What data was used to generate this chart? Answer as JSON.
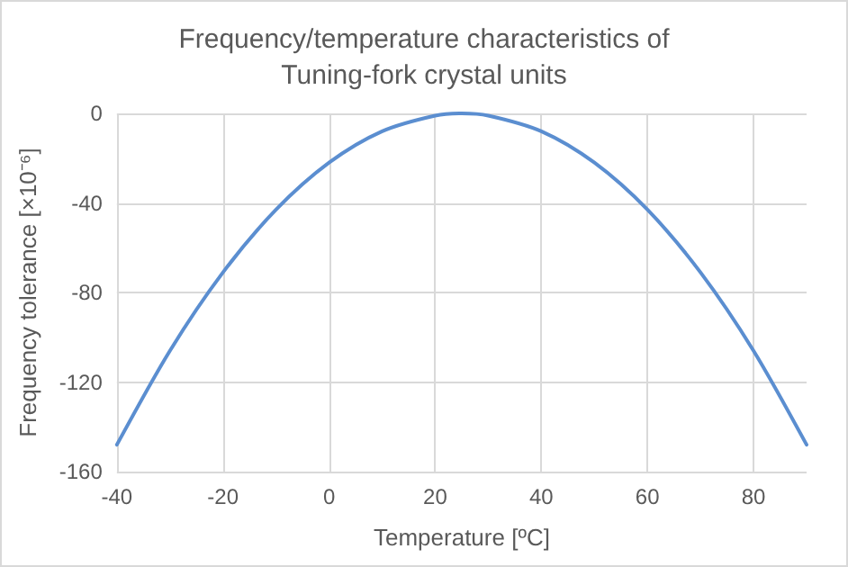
{
  "chart_data": {
    "type": "line",
    "title": "Frequency/temperature characteristics of\nTuning-fork crystal units",
    "xlabel": "Temperature [ºC]",
    "ylabel": "Frequency tolerance [×10⁻⁶]",
    "x": [
      -40,
      -30,
      -20,
      -10,
      0,
      10,
      20,
      25,
      30,
      40,
      50,
      60,
      70,
      80,
      90
    ],
    "series": [
      {
        "color": "#5b8ed0",
        "values": [
          -148,
          -106,
          -71,
          -43,
          -22,
          -8,
          -1,
          0,
          -1,
          -8,
          -22,
          -43,
          -71,
          -106,
          -148
        ]
      }
    ],
    "xlim": [
      -40,
      90
    ],
    "xticks": [
      -40,
      -20,
      0,
      20,
      40,
      60,
      80
    ],
    "ylim": [
      -160,
      0
    ],
    "yticks": [
      -160,
      -120,
      -80,
      -40,
      0
    ],
    "grid": true,
    "marker": "none",
    "line_style": "solid"
  }
}
